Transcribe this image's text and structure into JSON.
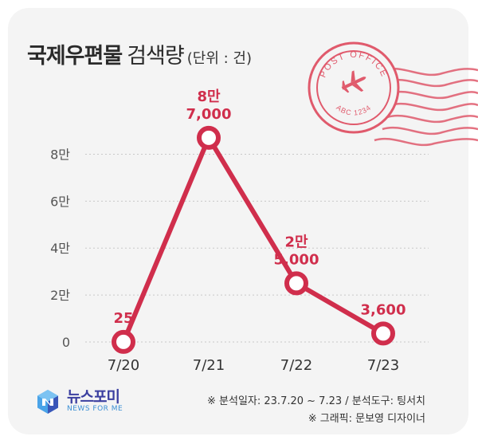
{
  "title": {
    "main": "국제우편물",
    "sub": "검색량",
    "unit": "(단위 : 건)"
  },
  "stamp": {
    "top_text": "POST OFFICE",
    "bottom_text": "ABC 1234"
  },
  "chart_data": {
    "type": "line",
    "categories": [
      "7/20",
      "7/21",
      "7/22",
      "7/23"
    ],
    "values": [
      25,
      87000,
      25000,
      3600
    ],
    "data_labels": [
      [
        "25"
      ],
      [
        "8만",
        "7,000"
      ],
      [
        "2만",
        "5,000"
      ],
      [
        "3,600"
      ]
    ],
    "ytick_labels": [
      "0",
      "2만",
      "4만",
      "6만",
      "8만"
    ],
    "yticks": [
      0,
      20000,
      40000,
      60000,
      80000
    ],
    "ylim": [
      0,
      90000
    ],
    "grid": true,
    "color": "#d02e4c"
  },
  "footer": {
    "line1": "※ 분석일자: 23.7.20 ~ 7.23  / 분석도구: 팅서치",
    "line2": "※ 그래픽: 문보영 디자이너"
  },
  "logo": {
    "name": "뉴스포미",
    "tagline": "NEWS FOR ME"
  },
  "icons": {
    "stamp": "postmark-airplane-icon",
    "logo": "newsforme-logo-icon"
  }
}
